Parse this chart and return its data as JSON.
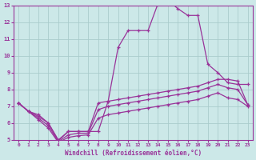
{
  "bg_color": "#cce8e8",
  "grid_color": "#aacccc",
  "line_color": "#993399",
  "xlabel": "Windchill (Refroidissement éolien,°C)",
  "xlim": [
    -0.5,
    23.5
  ],
  "ylim": [
    5,
    13
  ],
  "yticks": [
    5,
    6,
    7,
    8,
    9,
    10,
    11,
    12,
    13
  ],
  "xticks": [
    0,
    1,
    2,
    3,
    4,
    5,
    6,
    7,
    8,
    9,
    10,
    11,
    12,
    13,
    14,
    15,
    16,
    17,
    18,
    19,
    20,
    21,
    22,
    23
  ],
  "line1_x": [
    0,
    1,
    2,
    3,
    4,
    5,
    6,
    7,
    8,
    9,
    10,
    11,
    12,
    13,
    14,
    15,
    16,
    17,
    18,
    19,
    20,
    21,
    22,
    23
  ],
  "line1_y": [
    7.2,
    6.7,
    6.4,
    6.0,
    5.0,
    5.5,
    5.5,
    5.5,
    5.5,
    7.3,
    10.5,
    11.5,
    11.5,
    11.5,
    13.1,
    13.3,
    12.8,
    12.4,
    12.4,
    9.5,
    9.0,
    8.4,
    8.3,
    8.3
  ],
  "line2_x": [
    0,
    1,
    2,
    3,
    4,
    5,
    6,
    7,
    8,
    9,
    10,
    11,
    12,
    13,
    14,
    15,
    16,
    17,
    18,
    19,
    20,
    21,
    22,
    23
  ],
  "line2_y": [
    7.2,
    6.7,
    6.5,
    6.0,
    4.95,
    5.5,
    5.5,
    5.5,
    7.2,
    7.3,
    7.4,
    7.5,
    7.6,
    7.7,
    7.8,
    7.9,
    8.0,
    8.1,
    8.2,
    8.4,
    8.6,
    8.6,
    8.5,
    7.1
  ],
  "line3_x": [
    0,
    1,
    2,
    3,
    4,
    5,
    6,
    7,
    8,
    9,
    10,
    11,
    12,
    13,
    14,
    15,
    16,
    17,
    18,
    19,
    20,
    21,
    22,
    23
  ],
  "line3_y": [
    7.2,
    6.7,
    6.3,
    5.85,
    4.9,
    5.3,
    5.4,
    5.4,
    6.8,
    7.0,
    7.1,
    7.2,
    7.3,
    7.4,
    7.5,
    7.6,
    7.7,
    7.8,
    7.9,
    8.1,
    8.3,
    8.1,
    8.0,
    7.1
  ],
  "line4_x": [
    0,
    1,
    2,
    3,
    4,
    5,
    6,
    7,
    8,
    9,
    10,
    11,
    12,
    13,
    14,
    15,
    16,
    17,
    18,
    19,
    20,
    21,
    22,
    23
  ],
  "line4_y": [
    7.2,
    6.7,
    6.2,
    5.7,
    4.85,
    5.15,
    5.25,
    5.3,
    6.3,
    6.5,
    6.6,
    6.7,
    6.8,
    6.9,
    7.0,
    7.1,
    7.2,
    7.3,
    7.4,
    7.6,
    7.8,
    7.5,
    7.4,
    7.0
  ]
}
